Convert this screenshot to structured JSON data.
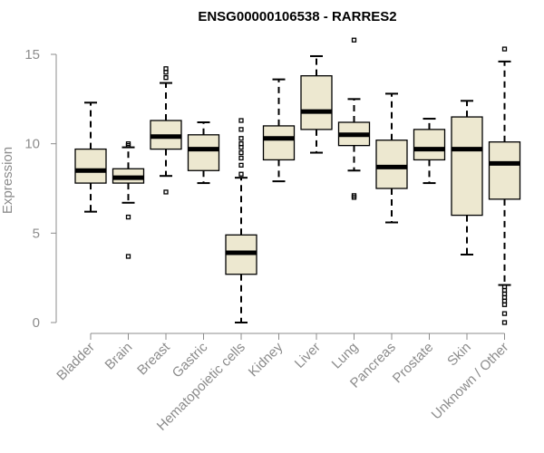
{
  "chart_data": {
    "type": "boxplot",
    "title": "ENSG00000106538 - RARRES2",
    "xlabel": "",
    "ylabel": "Expression",
    "ylim": [
      0,
      15.8
    ],
    "yticks": [
      0,
      5,
      10,
      15
    ],
    "grid": false,
    "colors": {
      "box_fill": "#ede8d0",
      "box_stroke": "#000000",
      "axis": "#8c8c8c",
      "label": "#8c8c8c"
    },
    "categories": [
      "Bladder",
      "Brain",
      "Breast",
      "Gastric",
      "Hematopoietic cells",
      "Kidney",
      "Liver",
      "Lung",
      "Pancreas",
      "Prostate",
      "Skin",
      "Unknown / Other"
    ],
    "boxes": [
      {
        "name": "Bladder",
        "whisker_low": 6.2,
        "q1": 7.8,
        "median": 8.5,
        "q3": 9.7,
        "whisker_high": 12.3,
        "outliers": []
      },
      {
        "name": "Brain",
        "whisker_low": 6.7,
        "q1": 7.8,
        "median": 8.1,
        "q3": 8.6,
        "whisker_high": 9.8,
        "outliers": [
          10.0,
          9.9,
          5.9,
          3.7
        ]
      },
      {
        "name": "Breast",
        "whisker_low": 8.2,
        "q1": 9.7,
        "median": 10.4,
        "q3": 11.3,
        "whisker_high": 13.4,
        "outliers": [
          13.7,
          14.0,
          14.2,
          7.3
        ]
      },
      {
        "name": "Gastric",
        "whisker_low": 7.8,
        "q1": 8.5,
        "median": 9.7,
        "q3": 10.5,
        "whisker_high": 11.2,
        "outliers": []
      },
      {
        "name": "Hematopoietic cells",
        "whisker_low": 0.0,
        "q1": 2.7,
        "median": 3.9,
        "q3": 4.9,
        "whisker_high": 8.1,
        "outliers": [
          11.3,
          10.8,
          10.3,
          10.0,
          9.8,
          9.5,
          9.2,
          8.8,
          8.3
        ]
      },
      {
        "name": "Kidney",
        "whisker_low": 7.9,
        "q1": 9.1,
        "median": 10.3,
        "q3": 11.0,
        "whisker_high": 13.6,
        "outliers": []
      },
      {
        "name": "Liver",
        "whisker_low": 9.5,
        "q1": 10.8,
        "median": 11.8,
        "q3": 13.8,
        "whisker_high": 14.9,
        "outliers": []
      },
      {
        "name": "Lung",
        "whisker_low": 8.5,
        "q1": 9.9,
        "median": 10.5,
        "q3": 11.2,
        "whisker_high": 12.5,
        "outliers": [
          15.8,
          7.1,
          7.0
        ]
      },
      {
        "name": "Pancreas",
        "whisker_low": 5.6,
        "q1": 7.5,
        "median": 8.7,
        "q3": 10.2,
        "whisker_high": 12.8,
        "outliers": []
      },
      {
        "name": "Prostate",
        "whisker_low": 7.8,
        "q1": 9.1,
        "median": 9.7,
        "q3": 10.8,
        "whisker_high": 11.4,
        "outliers": []
      },
      {
        "name": "Skin",
        "whisker_low": 3.8,
        "q1": 6.0,
        "median": 9.7,
        "q3": 11.5,
        "whisker_high": 12.4,
        "outliers": []
      },
      {
        "name": "Unknown / Other",
        "whisker_low": 2.1,
        "q1": 6.9,
        "median": 8.9,
        "q3": 10.1,
        "whisker_high": 14.6,
        "outliers": [
          15.3,
          2.0,
          1.8,
          1.6,
          1.4,
          1.2,
          1.0,
          0.5,
          0.0
        ]
      }
    ]
  }
}
